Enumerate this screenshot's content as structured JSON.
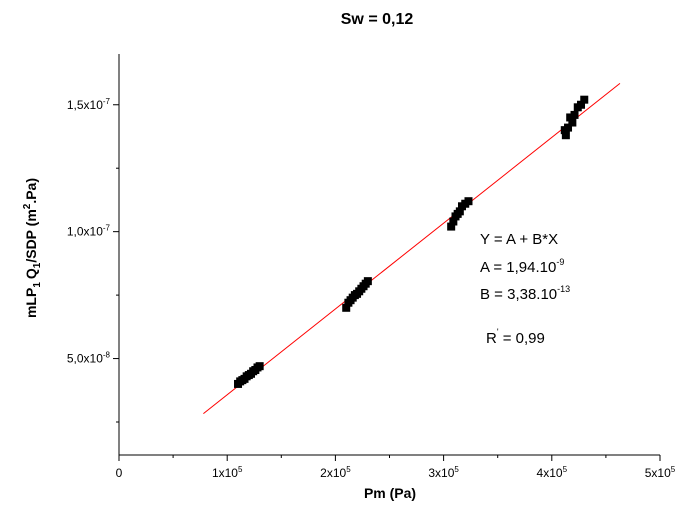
{
  "chart_data": {
    "type": "scatter",
    "title": "Sw = 0,12",
    "xlabel": "Pm (Pa)",
    "ylabel_parts": {
      "main": "mLP",
      "sub1": "1",
      "mid": "Q",
      "sub2": "1",
      "rest": "/SDP (m",
      "sup": "2",
      "end": ".Pa)"
    },
    "xlim": [
      0,
      500000
    ],
    "ylim": [
      1.2e-08,
      1.7e-07
    ],
    "x_ticks": [
      {
        "value": 0,
        "base": "0",
        "exp": ""
      },
      {
        "value": 100000,
        "base": "1x10",
        "exp": "5"
      },
      {
        "value": 200000,
        "base": "2x10",
        "exp": "5"
      },
      {
        "value": 300000,
        "base": "3x10",
        "exp": "5"
      },
      {
        "value": 400000,
        "base": "4x10",
        "exp": "5"
      },
      {
        "value": 500000,
        "base": "5x10",
        "exp": "5"
      }
    ],
    "y_ticks": [
      {
        "value": 5e-08,
        "base": "5,0x10",
        "exp": "-8"
      },
      {
        "value": 1e-07,
        "base": "1,0x10",
        "exp": "-7"
      },
      {
        "value": 1.5e-07,
        "base": "1,5x10",
        "exp": "-7"
      }
    ],
    "series": [
      {
        "marker": "square",
        "color": "#000000",
        "x": [
          110000,
          112000,
          114000,
          116000,
          118000,
          120000,
          122000,
          124000,
          126000,
          128000,
          130000,
          210000,
          212000,
          214000,
          216000,
          218000,
          220000,
          222000,
          224000,
          226000,
          228000,
          230000,
          307000,
          309000,
          311000,
          313000,
          315000,
          317000,
          320000,
          323000,
          412000,
          413000,
          415000,
          417000,
          419000,
          421000,
          424000,
          427000,
          430000
        ],
        "y": [
          4e-08,
          4.1e-08,
          4.15e-08,
          4.2e-08,
          4.3e-08,
          4.35e-08,
          4.4e-08,
          4.5e-08,
          4.55e-08,
          4.65e-08,
          4.7e-08,
          7e-08,
          7.2e-08,
          7.3e-08,
          7.4e-08,
          7.5e-08,
          7.55e-08,
          7.65e-08,
          7.75e-08,
          7.85e-08,
          7.95e-08,
          8.05e-08,
          1.02e-07,
          1.04e-07,
          1.06e-07,
          1.07e-07,
          1.08e-07,
          1.1e-07,
          1.11e-07,
          1.12e-07,
          1.4e-07,
          1.38e-07,
          1.41e-07,
          1.45e-07,
          1.43e-07,
          1.46e-07,
          1.49e-07,
          1.5e-07,
          1.52e-07
        ]
      }
    ],
    "fit_line": {
      "color": "#ff0000",
      "intercept": 1.94e-09,
      "slope": 3.38e-13,
      "x_range": [
        78000,
        463000
      ]
    },
    "annotations": {
      "equation": "Y = A + B*X",
      "a_label": "A = 1,94.10",
      "a_exp": "-9",
      "b_label": "B = 3,38.10",
      "b_exp": "-13",
      "r_label": "R",
      "r_sup": "'",
      "r_value": " = 0,99"
    },
    "grid": false,
    "legend": "none"
  }
}
